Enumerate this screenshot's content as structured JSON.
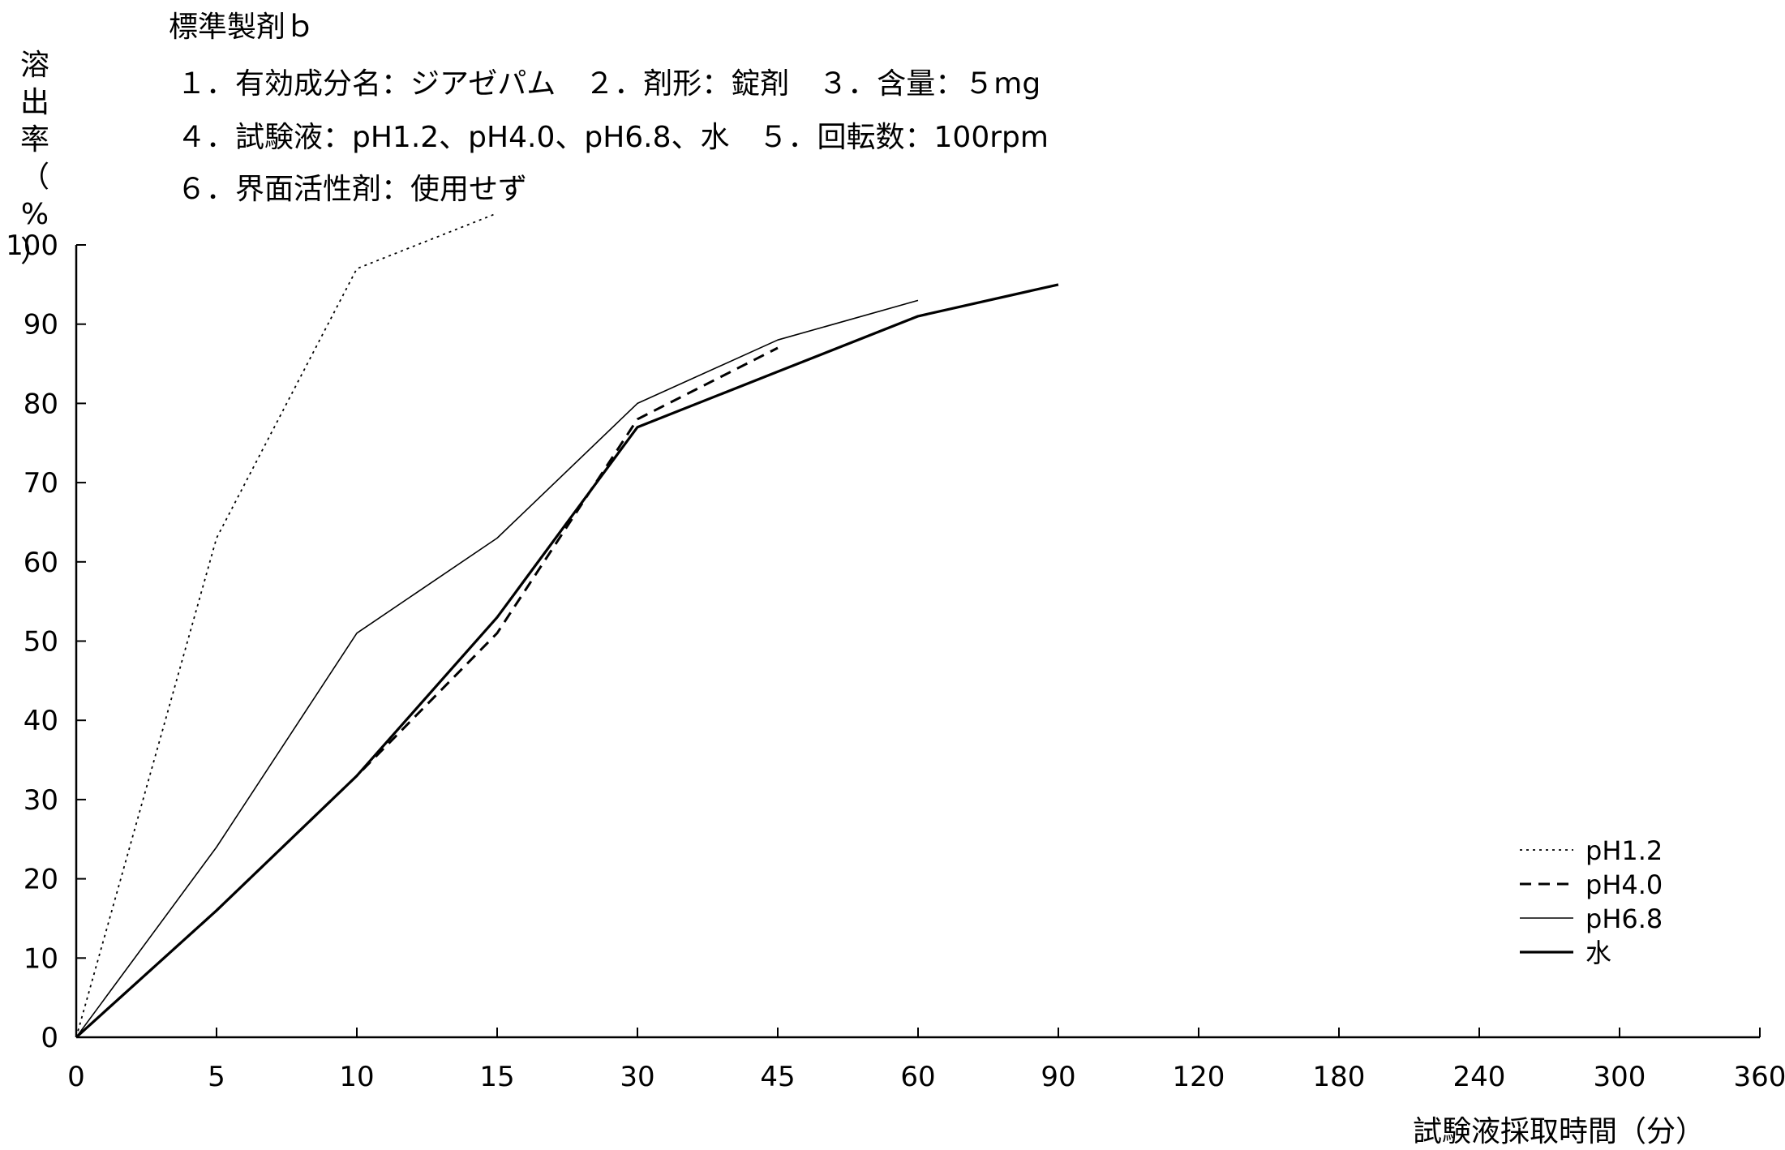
{
  "header": {
    "title": "標準製剤ｂ",
    "line1": "１．有効成分名：ジアゼパム　２．剤形：錠剤　３．含量：５mg",
    "line2": "４．試験液：pH1.2、pH4.0、pH6.8、水　５．回転数：100rpm",
    "line3": "６．界面活性剤：使用せず"
  },
  "chart_data": {
    "type": "line",
    "ylabel_chars": [
      "溶",
      "出",
      "率",
      "（",
      "%",
      "）"
    ],
    "xlabel": "試験液採取時間（分）",
    "categories": [
      "0",
      "5",
      "10",
      "15",
      "30",
      "45",
      "60",
      "90",
      "120",
      "180",
      "240",
      "300",
      "360"
    ],
    "ylim": [
      0,
      100
    ],
    "yticks": [
      "0",
      "10",
      "20",
      "30",
      "40",
      "50",
      "60",
      "70",
      "80",
      "90",
      "100"
    ],
    "grid": false,
    "legend_position": "right",
    "series": [
      {
        "name": "pH1.2",
        "style": "dotted",
        "x": [
          0,
          5,
          10,
          15
        ],
        "values": [
          0,
          63,
          97,
          104
        ]
      },
      {
        "name": "pH4.0",
        "style": "dashed",
        "x": [
          0,
          5,
          10,
          15,
          30,
          45
        ],
        "values": [
          0,
          16,
          33,
          51,
          78,
          87
        ]
      },
      {
        "name": "pH6.8",
        "style": "thin",
        "x": [
          0,
          5,
          10,
          15,
          30,
          45,
          60
        ],
        "values": [
          0,
          24,
          51,
          63,
          80,
          88,
          93
        ]
      },
      {
        "name": "水",
        "style": "solid",
        "x": [
          0,
          5,
          10,
          15,
          30,
          45,
          60,
          90
        ],
        "values": [
          0,
          16,
          33,
          53,
          77,
          84,
          91,
          95
        ]
      }
    ],
    "colors": {
      "line": "#000000",
      "axis": "#000000"
    }
  }
}
